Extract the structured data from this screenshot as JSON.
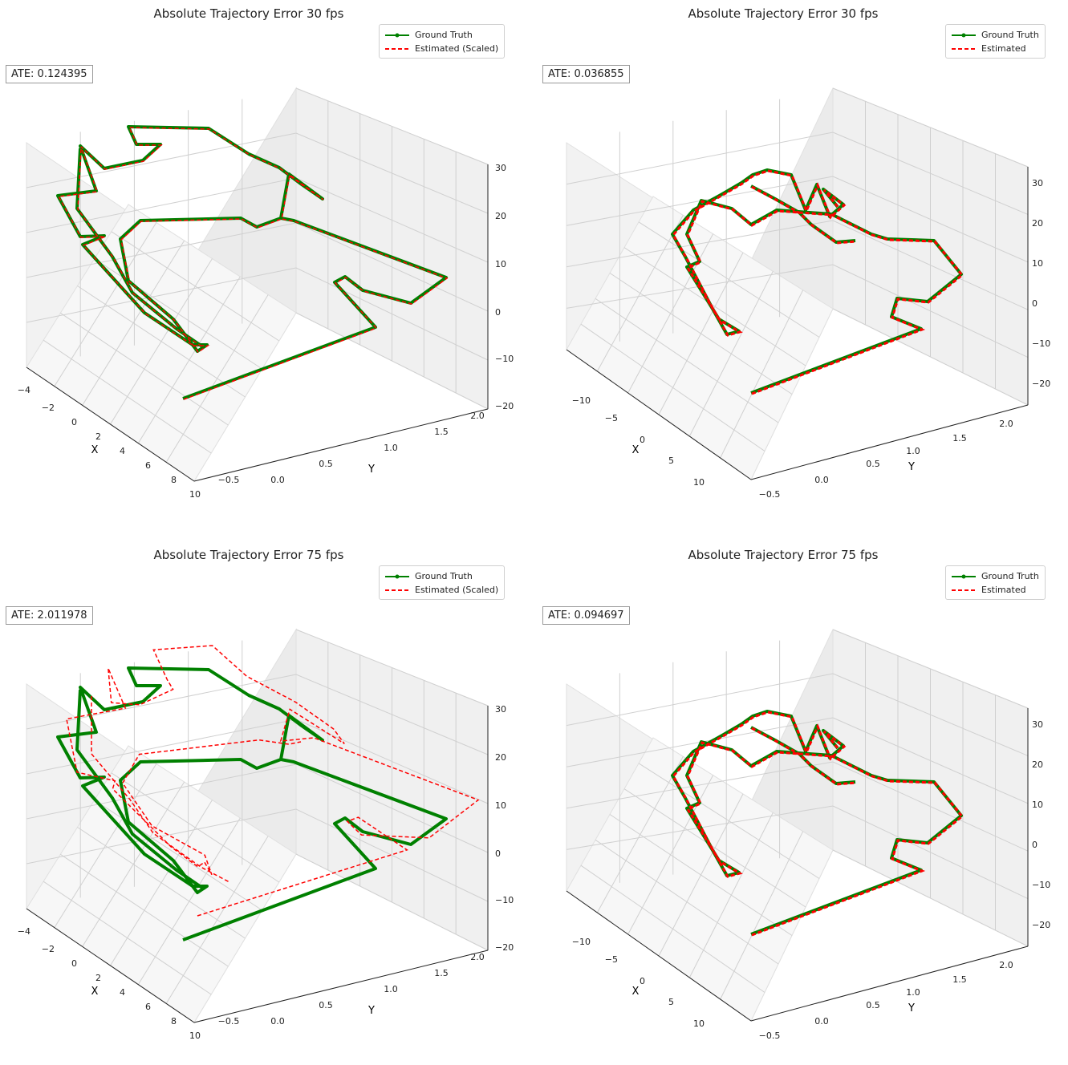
{
  "chart_data": [
    {
      "type": "line",
      "projection": "3d",
      "title": "Absolute Trajectory Error 30 fps",
      "annotation": "ATE: 0.124395",
      "xlabel": "X",
      "ylabel": "Y",
      "zlabel": "",
      "xticks": [
        "−4",
        "−2",
        "0",
        "2",
        "4",
        "6",
        "8",
        "10"
      ],
      "yticks": [
        "−0.5",
        "0.0",
        "0.5",
        "1.0",
        "1.5",
        "2.0"
      ],
      "zticks": [
        "30",
        "20",
        "10",
        "0",
        "−10",
        "−20"
      ],
      "xlim": [
        -5,
        10
      ],
      "ylim": [
        -0.5,
        2.0
      ],
      "zlim": [
        -20,
        30
      ],
      "legend_position": "top-right",
      "series": [
        {
          "name": "Ground Truth",
          "color": "#008000",
          "style": "solid-dots"
        },
        {
          "name": "Estimated (Scaled)",
          "color": "#ff0000",
          "style": "dashed"
        }
      ]
    },
    {
      "type": "line",
      "projection": "3d",
      "title": "Absolute Trajectory Error 30 fps",
      "annotation": "ATE: 0.036855",
      "xlabel": "X",
      "ylabel": "Y",
      "zlabel": "",
      "xticks": [
        "−10",
        "−5",
        "0",
        "5",
        "10"
      ],
      "yticks": [
        "−0.5",
        "0.0",
        "0.5",
        "1.0",
        "1.5",
        "2.0"
      ],
      "zticks": [
        "30",
        "20",
        "10",
        "0",
        "−10",
        "−20"
      ],
      "xlim": [
        -12,
        12
      ],
      "ylim": [
        -0.5,
        2.2
      ],
      "zlim": [
        -22,
        32
      ],
      "legend_position": "top-right",
      "series": [
        {
          "name": "Ground Truth",
          "color": "#008000",
          "style": "solid-dots"
        },
        {
          "name": "Estimated",
          "color": "#ff0000",
          "style": "dashed"
        }
      ]
    },
    {
      "type": "line",
      "projection": "3d",
      "title": "Absolute Trajectory Error 75 fps",
      "annotation": "ATE: 2.011978",
      "xlabel": "X",
      "ylabel": "Y",
      "zlabel": "",
      "xticks": [
        "−4",
        "−2",
        "0",
        "2",
        "4",
        "6",
        "8",
        "10"
      ],
      "yticks": [
        "−0.5",
        "0.0",
        "0.5",
        "1.0",
        "1.5",
        "2.0"
      ],
      "zticks": [
        "30",
        "20",
        "10",
        "0",
        "−10",
        "−20"
      ],
      "xlim": [
        -5,
        10
      ],
      "ylim": [
        -0.5,
        2.0
      ],
      "zlim": [
        -20,
        30
      ],
      "legend_position": "top-right",
      "series": [
        {
          "name": "Ground Truth",
          "color": "#008000",
          "style": "solid-dots"
        },
        {
          "name": "Estimated (Scaled)",
          "color": "#ff0000",
          "style": "dashed"
        }
      ]
    },
    {
      "type": "line",
      "projection": "3d",
      "title": "Absolute Trajectory Error 75 fps",
      "annotation": "ATE: 0.094697",
      "xlabel": "X",
      "ylabel": "Y",
      "zlabel": "",
      "xticks": [
        "−10",
        "−5",
        "0",
        "5",
        "10"
      ],
      "yticks": [
        "−0.5",
        "0.0",
        "0.5",
        "1.0",
        "1.5",
        "2.0"
      ],
      "zticks": [
        "30",
        "20",
        "10",
        "0",
        "−10",
        "−20"
      ],
      "xlim": [
        -12,
        12
      ],
      "ylim": [
        -0.5,
        2.2
      ],
      "zlim": [
        -22,
        32
      ],
      "legend_position": "top-right",
      "series": [
        {
          "name": "Ground Truth",
          "color": "#008000",
          "style": "solid-dots"
        },
        {
          "name": "Estimated",
          "color": "#ff0000",
          "style": "dashed"
        }
      ]
    }
  ]
}
